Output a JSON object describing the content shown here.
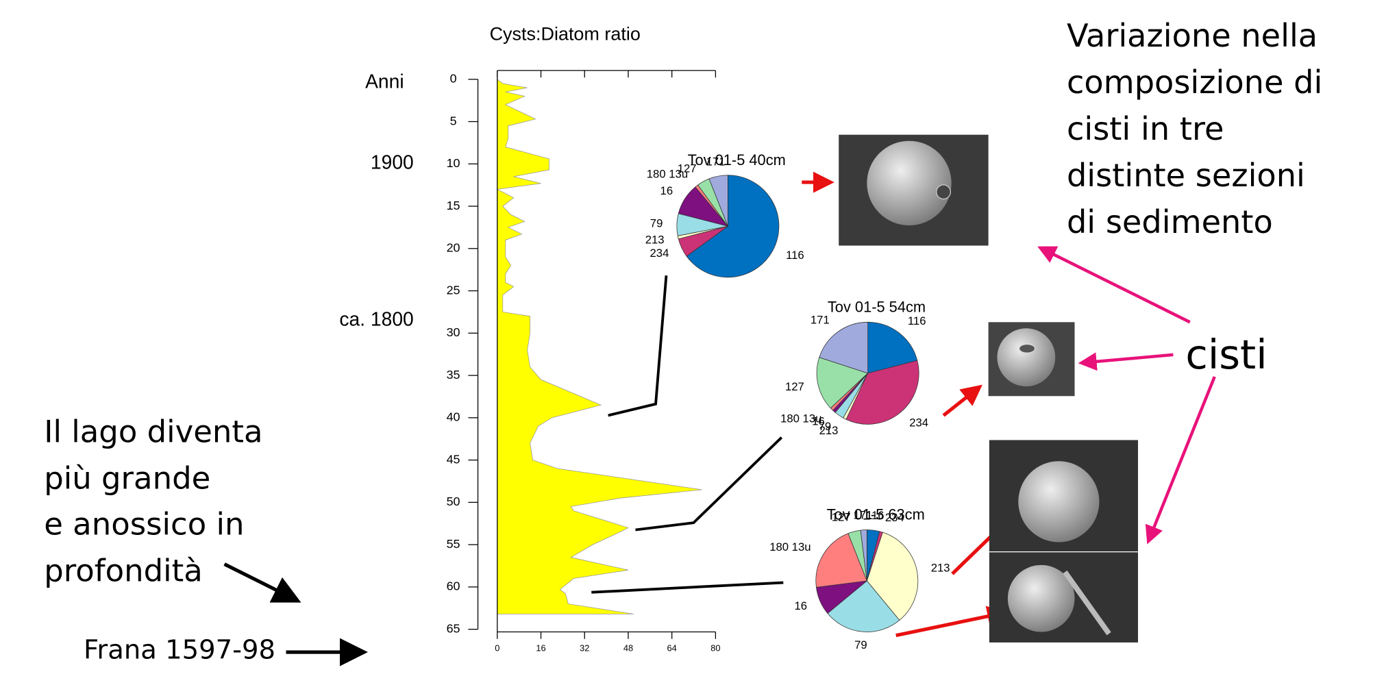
{
  "chart_data": [
    {
      "type": "area",
      "title": "Cysts:Diatom ratio",
      "color": "#ffff00",
      "orientation": "vertical",
      "x": [
        0,
        0.5,
        1,
        1.5,
        2,
        3,
        4.7,
        5.5,
        7,
        8,
        9.4,
        10.7,
        11.5,
        12.3,
        13,
        14,
        15,
        16,
        16.8,
        17.5,
        18.3,
        19,
        20,
        21,
        22,
        23,
        24,
        24.5,
        25.5,
        27.5,
        28,
        30,
        32,
        34,
        35.5,
        38.5,
        40,
        41,
        43,
        45,
        46,
        48.5,
        49.5,
        50.5,
        51,
        53,
        53.5,
        55,
        56.5,
        58,
        59,
        60.3,
        60.8,
        62,
        63.2
      ],
      "values": [
        0,
        2,
        11,
        3,
        10,
        3,
        14,
        4,
        4,
        3,
        19,
        19,
        6,
        16,
        0,
        6,
        2,
        5,
        10,
        4,
        9,
        3,
        3,
        3,
        5,
        3,
        3,
        6,
        2,
        2,
        12,
        12,
        11,
        12,
        16,
        38,
        20,
        15,
        12,
        13,
        22,
        75,
        45,
        27,
        28,
        48,
        45,
        35,
        27,
        48,
        28,
        23,
        25,
        26,
        50
      ],
      "xlim": [
        0,
        80
      ],
      "xticks": [
        0,
        16,
        32,
        48,
        64,
        80
      ],
      "ylim": [
        0,
        65
      ],
      "yticks": [
        0,
        5,
        10,
        15,
        20,
        25,
        30,
        35,
        40,
        45,
        50,
        55,
        60,
        65
      ],
      "age_axis_label": "Anni",
      "age_labels": [
        {
          "value": 10,
          "label": "1900"
        },
        {
          "value": 28.5,
          "label": "ca. 1800"
        }
      ]
    },
    {
      "type": "pie",
      "title": "Tov 01-5 40cm",
      "categories": [
        "116",
        "234",
        "213",
        "79",
        "16",
        "180 13u",
        "127",
        "171"
      ],
      "values": [
        65,
        6,
        1,
        7,
        10,
        1,
        4,
        6
      ],
      "colors": [
        "#0070c0",
        "#cc3377",
        "#ffffcc",
        "#99dde6",
        "#7f1080",
        "#ff7f7f",
        "#99e0a8",
        "#a0aadd"
      ]
    },
    {
      "type": "pie",
      "title": "Tov 01-5 54cm",
      "categories": [
        "116",
        "234",
        "213",
        "79",
        "16",
        "180 13u",
        "127",
        "171"
      ],
      "values": [
        21,
        36,
        1,
        3,
        1,
        1,
        17,
        20
      ],
      "colors": [
        "#0070c0",
        "#cc3377",
        "#ffffcc",
        "#99dde6",
        "#7f1080",
        "#ff7f7f",
        "#99e0a8",
        "#a0aadd"
      ]
    },
    {
      "type": "pie",
      "title": "Tov 01-5 63cm",
      "categories": [
        "116",
        "234",
        "213",
        "79",
        "16",
        "180 13u",
        "127",
        "171"
      ],
      "values": [
        4,
        1,
        34,
        25,
        9,
        21,
        4,
        2
      ],
      "colors": [
        "#0070c0",
        "#cc3377",
        "#ffffcc",
        "#99dde6",
        "#7f1080",
        "#ff7f7f",
        "#99e0a8",
        "#a0aadd"
      ]
    }
  ],
  "slide": {
    "heading_lines": [
      "Variazione nella",
      "composizione di",
      "cisti in tre",
      "distinte sezioni",
      "di sedimento"
    ],
    "left_lines": [
      "Il lago diventa",
      "più grande",
      "e anossico in",
      "profondità"
    ],
    "cisti": "cisti",
    "frana": "Frana 1597-98"
  }
}
